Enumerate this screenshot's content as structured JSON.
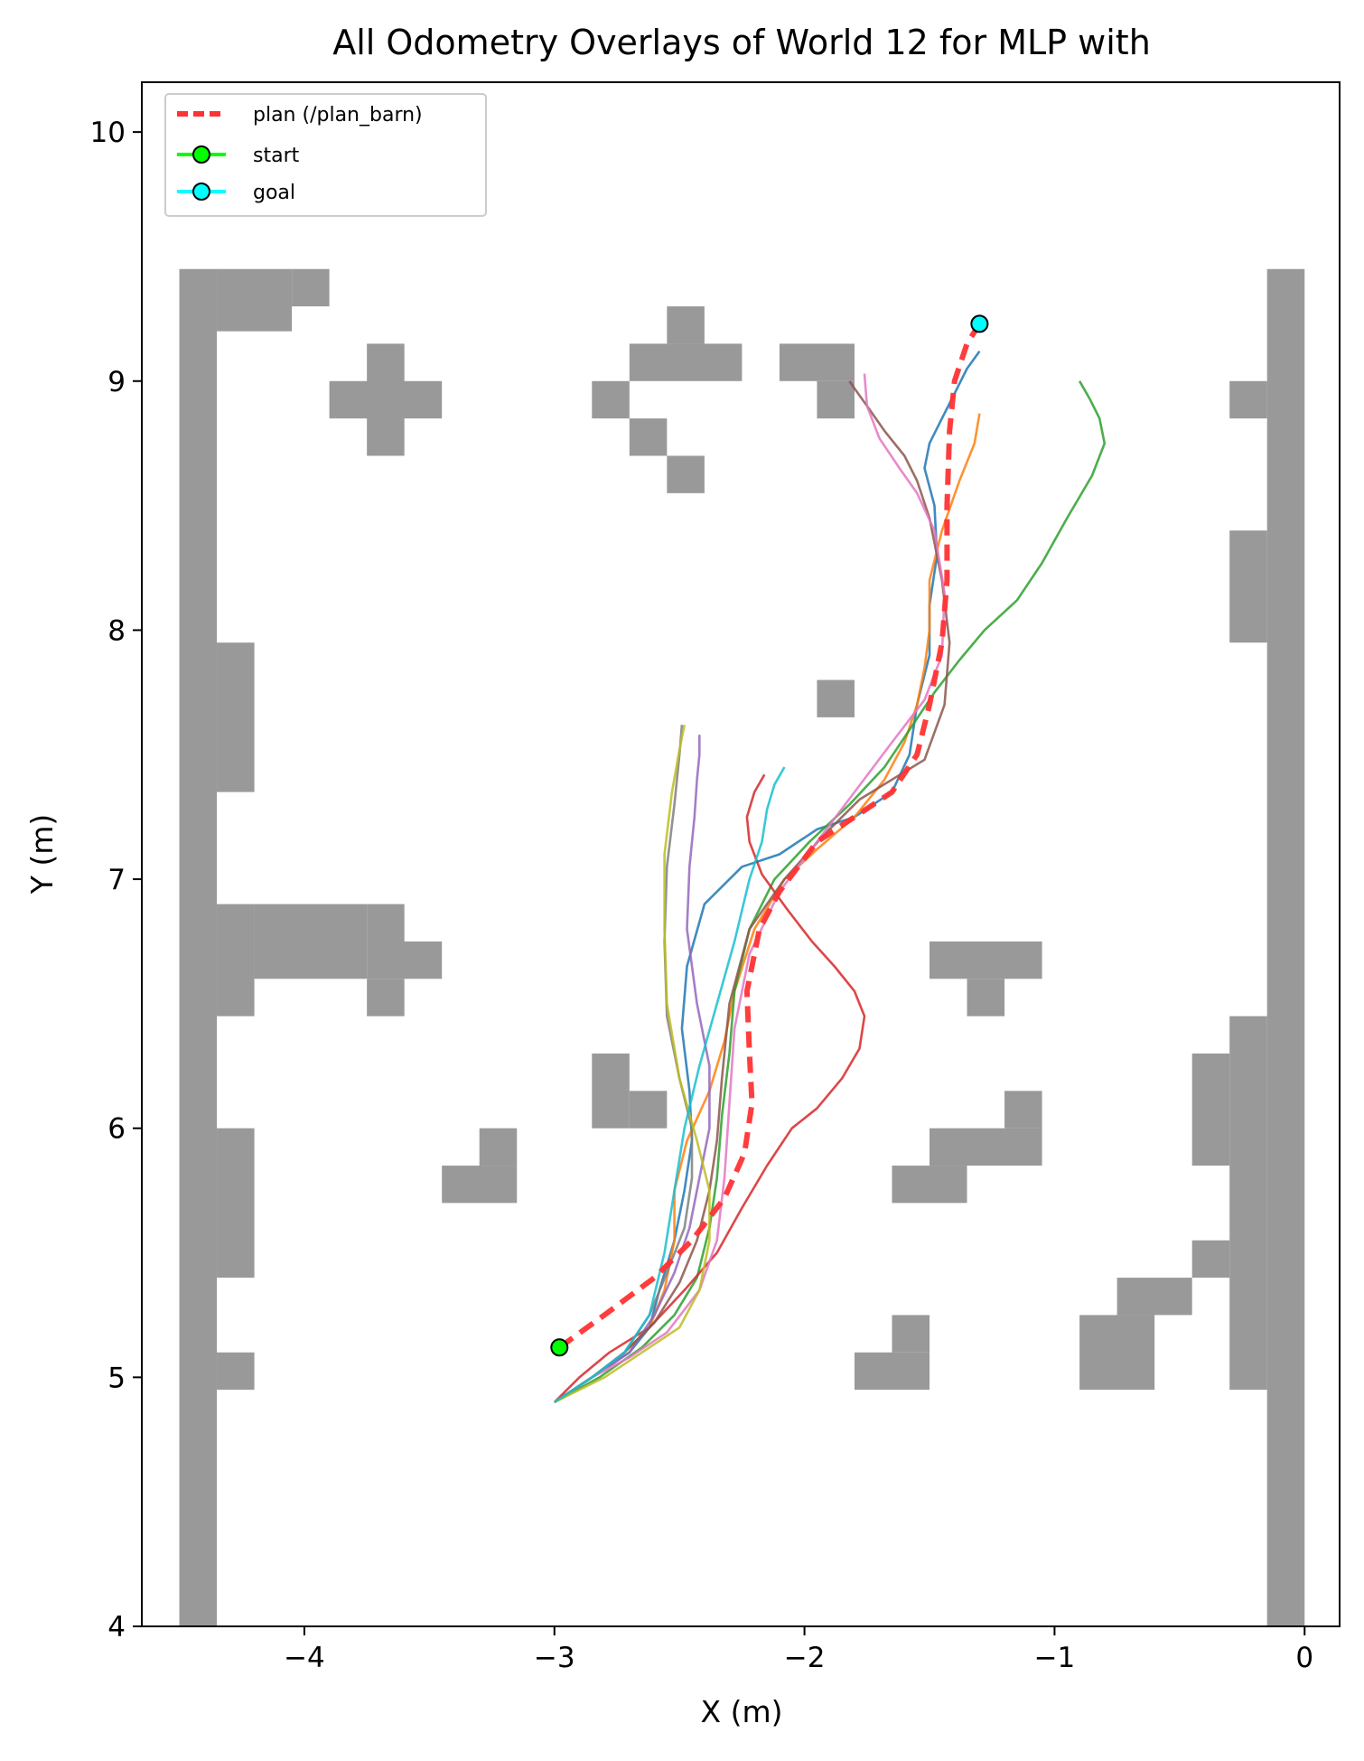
{
  "chart_data": {
    "type": "line",
    "title": "All Odometry Overlays of World 12 for MLP with",
    "xlabel": "X (m)",
    "ylabel": "Y (m)",
    "xlim": [
      -4.65,
      0.14
    ],
    "ylim": [
      4.0,
      10.2
    ],
    "xticks": [
      -4,
      -3,
      -2,
      -1,
      0
    ],
    "yticks": [
      4,
      5,
      6,
      7,
      8,
      9,
      10
    ],
    "xtick_labels": [
      "−4",
      "−3",
      "−2",
      "−1",
      "0"
    ],
    "ytick_labels": [
      "4",
      "5",
      "6",
      "7",
      "8",
      "9",
      "10"
    ],
    "grid": false,
    "legend": {
      "placement": "upper left",
      "entries": [
        {
          "label": "plan (/plan_barn)",
          "color": "#ff3333",
          "style": "dashed"
        },
        {
          "label": "start",
          "color": "#00ff00",
          "marker": "circle"
        },
        {
          "label": "goal",
          "color": "#00ffff",
          "marker": "circle"
        }
      ]
    },
    "obstacle_color": "#999999",
    "obstacle_cell_size": 0.15,
    "obstacles": [
      [
        -4.5,
        4.0,
        0.15,
        5.45
      ],
      [
        -4.35,
        9.2,
        0.3,
        0.25
      ],
      [
        -4.05,
        9.3,
        0.15,
        0.15
      ],
      [
        -4.35,
        7.35,
        0.15,
        0.6
      ],
      [
        -4.35,
        6.45,
        0.15,
        0.45
      ],
      [
        -4.2,
        6.6,
        0.45,
        0.3
      ],
      [
        -3.75,
        6.75,
        0.15,
        0.15
      ],
      [
        -3.75,
        6.6,
        0.3,
        0.15
      ],
      [
        -3.75,
        6.45,
        0.15,
        0.15
      ],
      [
        -4.35,
        5.4,
        0.15,
        0.6
      ],
      [
        -4.35,
        4.95,
        0.15,
        0.15
      ],
      [
        -3.75,
        8.7,
        0.15,
        0.45
      ],
      [
        -3.9,
        8.85,
        0.45,
        0.15
      ],
      [
        -2.85,
        8.85,
        0.15,
        0.15
      ],
      [
        -2.7,
        9.0,
        0.45,
        0.15
      ],
      [
        -2.55,
        9.15,
        0.15,
        0.15
      ],
      [
        -2.7,
        8.7,
        0.15,
        0.15
      ],
      [
        -2.55,
        8.55,
        0.15,
        0.15
      ],
      [
        -2.1,
        9.0,
        0.3,
        0.15
      ],
      [
        -1.95,
        8.85,
        0.15,
        0.15
      ],
      [
        -1.95,
        7.65,
        0.15,
        0.15
      ],
      [
        -2.85,
        6.0,
        0.15,
        0.3
      ],
      [
        -2.7,
        6.0,
        0.15,
        0.15
      ],
      [
        -3.45,
        5.7,
        0.3,
        0.15
      ],
      [
        -3.3,
        5.85,
        0.15,
        0.15
      ],
      [
        -1.5,
        6.6,
        0.45,
        0.15
      ],
      [
        -1.35,
        6.45,
        0.15,
        0.15
      ],
      [
        -1.5,
        5.85,
        0.45,
        0.15
      ],
      [
        -1.2,
        6.0,
        0.15,
        0.15
      ],
      [
        -1.65,
        5.7,
        0.3,
        0.15
      ],
      [
        -1.8,
        4.95,
        0.3,
        0.15
      ],
      [
        -1.65,
        5.1,
        0.15,
        0.15
      ],
      [
        -0.9,
        4.95,
        0.3,
        0.3
      ],
      [
        -0.75,
        5.25,
        0.3,
        0.15
      ],
      [
        -0.45,
        5.4,
        0.15,
        0.15
      ],
      [
        -0.15,
        4.0,
        0.15,
        5.45
      ],
      [
        -0.3,
        8.85,
        0.15,
        0.15
      ],
      [
        -0.3,
        7.95,
        0.15,
        0.45
      ],
      [
        -0.3,
        4.95,
        0.15,
        1.5
      ],
      [
        -0.45,
        5.85,
        0.15,
        0.45
      ]
    ],
    "plan": {
      "name": "plan (/plan_barn)",
      "color": "#ff3333",
      "x": [
        -2.98,
        -2.8,
        -2.6,
        -2.45,
        -2.32,
        -2.24,
        -2.21,
        -2.22,
        -2.23,
        -2.18,
        -2.1,
        -1.95,
        -1.8,
        -1.65,
        -1.55,
        -1.5,
        -1.45,
        -1.43,
        -1.43,
        -1.42,
        -1.4,
        -1.35,
        -1.3
      ],
      "y": [
        5.12,
        5.25,
        5.4,
        5.55,
        5.72,
        5.9,
        6.1,
        6.3,
        6.55,
        6.8,
        6.95,
        7.15,
        7.25,
        7.35,
        7.5,
        7.7,
        7.95,
        8.2,
        8.5,
        8.8,
        9.0,
        9.15,
        9.23
      ]
    },
    "start": {
      "x": -2.98,
      "y": 5.12,
      "color": "#00ff00"
    },
    "goal": {
      "x": -1.3,
      "y": 9.23,
      "color": "#00ffff"
    },
    "series": [
      {
        "color": "#1f77b4",
        "x": [
          -3.0,
          -2.85,
          -2.7,
          -2.62,
          -2.58,
          -2.52,
          -2.48,
          -2.45,
          -2.46,
          -2.49,
          -2.47,
          -2.4,
          -2.25,
          -2.1,
          -1.95,
          -1.8,
          -1.65,
          -1.58,
          -1.55,
          -1.5,
          -1.5,
          -1.47,
          -1.48,
          -1.52,
          -1.5,
          -1.45,
          -1.4,
          -1.35,
          -1.3
        ],
        "y": [
          4.9,
          5.0,
          5.1,
          5.2,
          5.35,
          5.55,
          5.75,
          5.95,
          6.15,
          6.4,
          6.65,
          6.9,
          7.05,
          7.1,
          7.2,
          7.25,
          7.35,
          7.5,
          7.7,
          7.9,
          8.1,
          8.3,
          8.5,
          8.65,
          8.75,
          8.85,
          8.95,
          9.05,
          9.12
        ]
      },
      {
        "color": "#ff7f0e",
        "x": [
          -3.0,
          -2.85,
          -2.72,
          -2.62,
          -2.56,
          -2.52,
          -2.52,
          -2.47,
          -2.38,
          -2.32,
          -2.28,
          -2.2,
          -2.08,
          -1.95,
          -1.8,
          -1.68,
          -1.6,
          -1.55,
          -1.52,
          -1.5,
          -1.5,
          -1.45,
          -1.38,
          -1.32,
          -1.3
        ],
        "y": [
          4.9,
          5.0,
          5.1,
          5.2,
          5.35,
          5.55,
          5.75,
          5.95,
          6.15,
          6.35,
          6.55,
          6.8,
          7.0,
          7.12,
          7.25,
          7.4,
          7.55,
          7.7,
          7.85,
          8.0,
          8.2,
          8.4,
          8.6,
          8.75,
          8.87
        ]
      },
      {
        "color": "#2ca02c",
        "x": [
          -3.0,
          -2.82,
          -2.65,
          -2.52,
          -2.43,
          -2.38,
          -2.35,
          -2.33,
          -2.3,
          -2.28,
          -2.22,
          -2.12,
          -1.98,
          -1.82,
          -1.68,
          -1.58,
          -1.48,
          -1.38,
          -1.28,
          -1.15,
          -1.05,
          -0.95,
          -0.85,
          -0.8,
          -0.82,
          -0.86,
          -0.9
        ],
        "y": [
          4.9,
          5.0,
          5.12,
          5.25,
          5.4,
          5.6,
          5.8,
          6.05,
          6.3,
          6.55,
          6.8,
          7.0,
          7.15,
          7.3,
          7.45,
          7.6,
          7.75,
          7.88,
          8.0,
          8.12,
          8.27,
          8.45,
          8.62,
          8.75,
          8.85,
          8.93,
          9.0
        ]
      },
      {
        "color": "#d62728",
        "x": [
          -3.0,
          -2.9,
          -2.78,
          -2.62,
          -2.48,
          -2.35,
          -2.25,
          -2.15,
          -2.05,
          -1.95,
          -1.85,
          -1.78,
          -1.76,
          -1.8,
          -1.88,
          -1.97,
          -2.07,
          -2.17,
          -2.22,
          -2.23,
          -2.2,
          -2.16
        ],
        "y": [
          4.9,
          5.0,
          5.1,
          5.2,
          5.35,
          5.5,
          5.68,
          5.85,
          6.0,
          6.08,
          6.2,
          6.32,
          6.45,
          6.55,
          6.65,
          6.75,
          6.88,
          7.02,
          7.15,
          7.25,
          7.35,
          7.42
        ]
      },
      {
        "color": "#9467bd",
        "x": [
          -3.0,
          -2.85,
          -2.7,
          -2.6,
          -2.52,
          -2.46,
          -2.42,
          -2.38,
          -2.38,
          -2.43,
          -2.47,
          -2.46,
          -2.44,
          -2.43,
          -2.42,
          -2.42
        ],
        "y": [
          4.9,
          5.0,
          5.1,
          5.25,
          5.42,
          5.6,
          5.8,
          6.0,
          6.25,
          6.5,
          6.8,
          7.05,
          7.25,
          7.4,
          7.5,
          7.58
        ]
      },
      {
        "color": "#8c564b",
        "x": [
          -3.0,
          -2.85,
          -2.72,
          -2.6,
          -2.5,
          -2.43,
          -2.38,
          -2.35,
          -2.33,
          -2.3,
          -2.22,
          -2.08,
          -1.92,
          -1.78,
          -1.65,
          -1.52,
          -1.44,
          -1.42,
          -1.45,
          -1.5,
          -1.55,
          -1.6,
          -1.68,
          -1.75,
          -1.8,
          -1.82
        ],
        "y": [
          4.9,
          5.0,
          5.1,
          5.22,
          5.38,
          5.55,
          5.75,
          5.95,
          6.2,
          6.5,
          6.8,
          7.0,
          7.18,
          7.32,
          7.4,
          7.48,
          7.7,
          7.95,
          8.2,
          8.45,
          8.6,
          8.7,
          8.8,
          8.9,
          8.97,
          9.0
        ]
      },
      {
        "color": "#e377c2",
        "x": [
          -3.0,
          -2.85,
          -2.7,
          -2.55,
          -2.42,
          -2.35,
          -2.32,
          -2.3,
          -2.28,
          -2.22,
          -2.1,
          -1.95,
          -1.8,
          -1.65,
          -1.52,
          -1.45,
          -1.44,
          -1.48,
          -1.55,
          -1.62,
          -1.7,
          -1.75,
          -1.76
        ],
        "y": [
          4.9,
          5.0,
          5.08,
          5.18,
          5.35,
          5.55,
          5.8,
          6.1,
          6.4,
          6.7,
          6.95,
          7.15,
          7.35,
          7.55,
          7.72,
          7.9,
          8.15,
          8.4,
          8.55,
          8.65,
          8.77,
          8.9,
          9.03
        ]
      },
      {
        "color": "#7f7f7f",
        "x": [
          -3.0,
          -2.85,
          -2.72,
          -2.62,
          -2.55,
          -2.48,
          -2.45,
          -2.45,
          -2.5,
          -2.55,
          -2.56,
          -2.55,
          -2.52,
          -2.5,
          -2.49
        ],
        "y": [
          4.9,
          5.0,
          5.1,
          5.25,
          5.42,
          5.6,
          5.8,
          6.0,
          6.2,
          6.45,
          6.75,
          7.05,
          7.3,
          7.5,
          7.62
        ]
      },
      {
        "color": "#bcbd22",
        "x": [
          -3.0,
          -2.8,
          -2.62,
          -2.5,
          -2.42,
          -2.38,
          -2.38,
          -2.43,
          -2.5,
          -2.55,
          -2.56,
          -2.56,
          -2.53,
          -2.5,
          -2.48
        ],
        "y": [
          4.9,
          5.0,
          5.12,
          5.2,
          5.35,
          5.55,
          5.75,
          5.95,
          6.2,
          6.5,
          6.8,
          7.1,
          7.35,
          7.52,
          7.62
        ]
      },
      {
        "color": "#17becf",
        "x": [
          -3.0,
          -2.85,
          -2.72,
          -2.62,
          -2.56,
          -2.52,
          -2.48,
          -2.42,
          -2.35,
          -2.28,
          -2.22,
          -2.17,
          -2.15,
          -2.12,
          -2.08
        ],
        "y": [
          4.9,
          5.0,
          5.1,
          5.25,
          5.5,
          5.75,
          6.0,
          6.25,
          6.5,
          6.75,
          7.0,
          7.15,
          7.28,
          7.38,
          7.45
        ]
      }
    ]
  }
}
